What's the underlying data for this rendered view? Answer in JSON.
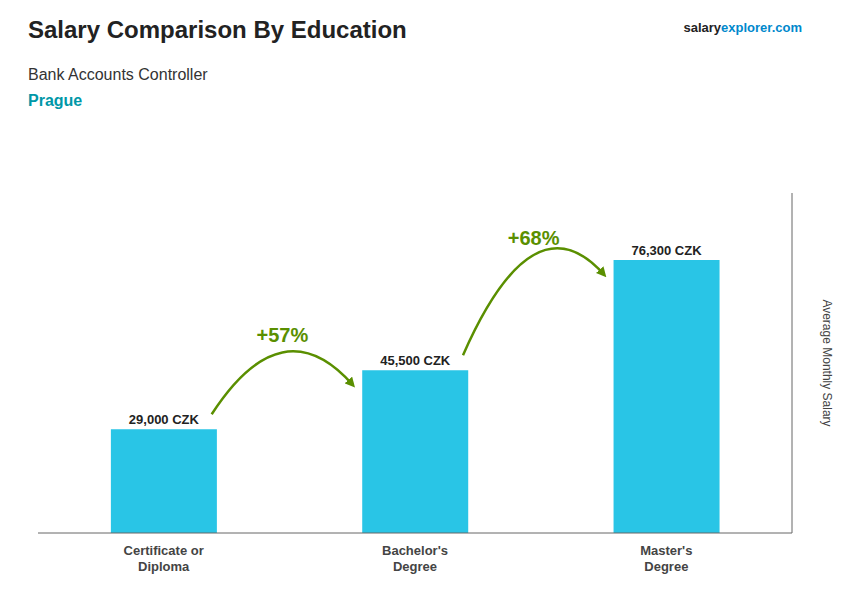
{
  "chart_data": {
    "type": "bar",
    "title": "Salary Comparison By Education",
    "subtitle": "Bank Accounts Controller",
    "annotations": [
      "+57%",
      "+68%",
      "Prague",
      "salary",
      "explorer.com"
    ],
    "y_label": "Average Monthly Salary",
    "categories": [
      "Certificate or\nDiploma",
      "Bachelor's\nDegree",
      "Master's\nDegree"
    ],
    "values": [
      29000,
      45500,
      76300
    ],
    "value_labels": [
      "29,000 CZK",
      "45,500 CZK",
      "76,300 CZK"
    ],
    "data_labels": true,
    "color": "#29c5e6",
    "ylim": [
      0,
      95000
    ],
    "grid": false,
    "tick_labels": "x"
  }
}
